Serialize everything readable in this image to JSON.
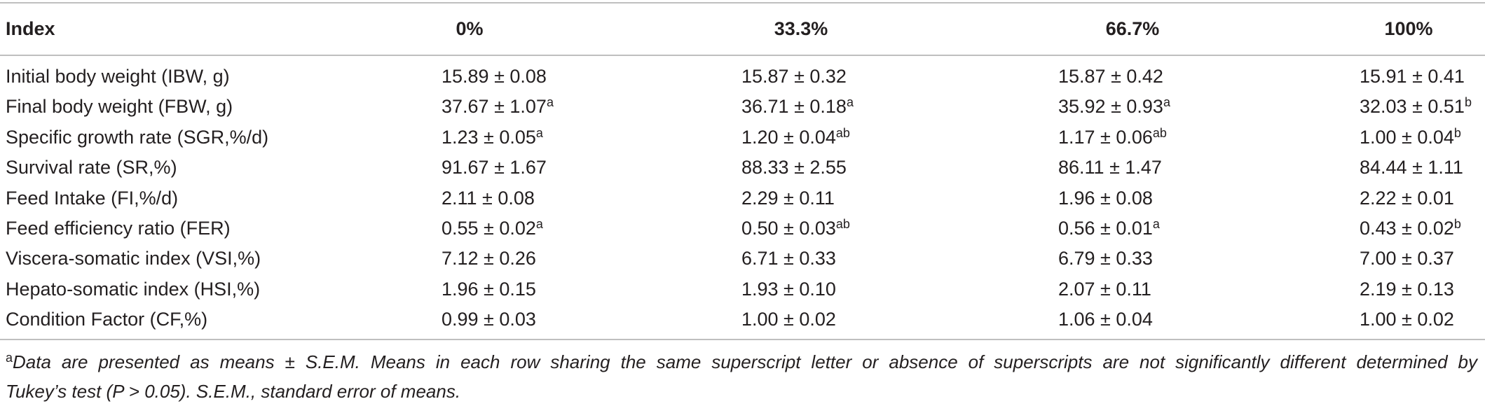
{
  "table": {
    "headers": [
      "Index",
      "0%",
      "33.3%",
      "66.7%",
      "100%"
    ],
    "rows": [
      {
        "label": "Initial body weight (IBW, g)",
        "values": [
          {
            "value": "15.89 ± 0.08",
            "sup": ""
          },
          {
            "value": "15.87 ± 0.32",
            "sup": ""
          },
          {
            "value": "15.87 ± 0.42",
            "sup": ""
          },
          {
            "value": "15.91 ± 0.41",
            "sup": ""
          }
        ]
      },
      {
        "label": "Final body weight (FBW, g)",
        "values": [
          {
            "value": "37.67 ± 1.07",
            "sup": "a"
          },
          {
            "value": "36.71 ± 0.18",
            "sup": "a"
          },
          {
            "value": "35.92 ± 0.93",
            "sup": "a"
          },
          {
            "value": "32.03 ± 0.51",
            "sup": "b"
          }
        ]
      },
      {
        "label": "Specific growth rate (SGR,%/d)",
        "values": [
          {
            "value": "1.23 ± 0.05",
            "sup": "a"
          },
          {
            "value": "1.20 ± 0.04",
            "sup": "ab"
          },
          {
            "value": "1.17 ± 0.06",
            "sup": "ab"
          },
          {
            "value": "1.00 ± 0.04",
            "sup": "b"
          }
        ]
      },
      {
        "label": "Survival rate (SR,%)",
        "values": [
          {
            "value": "91.67 ± 1.67",
            "sup": ""
          },
          {
            "value": "88.33 ± 2.55",
            "sup": ""
          },
          {
            "value": "86.11 ± 1.47",
            "sup": ""
          },
          {
            "value": "84.44 ± 1.11",
            "sup": ""
          }
        ]
      },
      {
        "label": "Feed Intake (FI,%/d)",
        "values": [
          {
            "value": "2.11 ± 0.08",
            "sup": ""
          },
          {
            "value": "2.29 ± 0.11",
            "sup": ""
          },
          {
            "value": "1.96 ± 0.08",
            "sup": ""
          },
          {
            "value": "2.22 ± 0.01",
            "sup": ""
          }
        ]
      },
      {
        "label": "Feed efficiency ratio (FER)",
        "values": [
          {
            "value": "0.55 ± 0.02",
            "sup": "a"
          },
          {
            "value": "0.50 ± 0.03",
            "sup": "ab"
          },
          {
            "value": "0.56 ± 0.01",
            "sup": "a"
          },
          {
            "value": "0.43 ± 0.02",
            "sup": "b"
          }
        ]
      },
      {
        "label": "Viscera-somatic index (VSI,%)",
        "values": [
          {
            "value": "7.12 ± 0.26",
            "sup": ""
          },
          {
            "value": "6.71 ± 0.33",
            "sup": ""
          },
          {
            "value": "6.79 ± 0.33",
            "sup": ""
          },
          {
            "value": "7.00 ± 0.37",
            "sup": ""
          }
        ]
      },
      {
        "label": "Hepato-somatic index (HSI,%)",
        "values": [
          {
            "value": "1.96 ± 0.15",
            "sup": ""
          },
          {
            "value": "1.93 ± 0.10",
            "sup": ""
          },
          {
            "value": "2.07 ± 0.11",
            "sup": ""
          },
          {
            "value": "2.19 ± 0.13",
            "sup": ""
          }
        ]
      },
      {
        "label": "Condition Factor (CF,%)",
        "values": [
          {
            "value": "0.99 ± 0.03",
            "sup": ""
          },
          {
            "value": "1.00 ± 0.02",
            "sup": ""
          },
          {
            "value": "1.06 ± 0.04",
            "sup": ""
          },
          {
            "value": "1.00 ± 0.02",
            "sup": ""
          }
        ]
      }
    ]
  },
  "footnote": {
    "marker": "a",
    "line1": "Data are presented as means ± S.E.M. Means in each row sharing the same superscript letter or absence of superscripts are not significantly different determined by",
    "line2": "Tukey’s test (P > 0.05). S.E.M., standard error of means."
  }
}
